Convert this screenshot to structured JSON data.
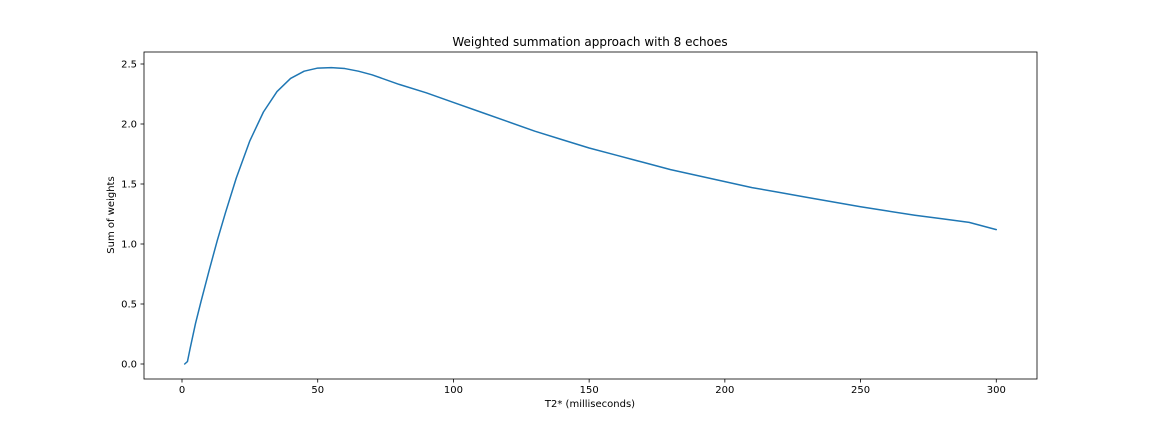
{
  "chart_data": {
    "type": "line",
    "title": "Weighted summation approach with 8 echoes",
    "xlabel": "T2* (milliseconds)",
    "ylabel": "Sum of weights",
    "xlim": [
      -14,
      315
    ],
    "ylim": [
      -0.125,
      2.6
    ],
    "xticks": [
      0,
      50,
      100,
      150,
      200,
      250,
      300
    ],
    "yticks": [
      0.0,
      0.5,
      1.0,
      1.5,
      2.0,
      2.5
    ],
    "xtick_labels": [
      "0",
      "50",
      "100",
      "150",
      "200",
      "250",
      "300"
    ],
    "ytick_labels": [
      "0.0",
      "0.5",
      "1.0",
      "1.5",
      "2.0",
      "2.5"
    ],
    "grid": false,
    "series": [
      {
        "color": "#1f77b4",
        "x": [
          1,
          2,
          3,
          5,
          7,
          10,
          13,
          16,
          20,
          25,
          30,
          35,
          40,
          45,
          50,
          55,
          60,
          65,
          70,
          80,
          90,
          100,
          110,
          120,
          130,
          140,
          150,
          160,
          170,
          180,
          190,
          200,
          210,
          220,
          230,
          240,
          250,
          260,
          270,
          280,
          290,
          300
        ],
        "y": [
          0.0,
          0.02,
          0.13,
          0.34,
          0.52,
          0.78,
          1.03,
          1.26,
          1.55,
          1.86,
          2.1,
          2.27,
          2.38,
          2.44,
          2.466,
          2.47,
          2.462,
          2.44,
          2.41,
          2.33,
          2.26,
          2.18,
          2.1,
          2.02,
          1.94,
          1.87,
          1.8,
          1.74,
          1.68,
          1.62,
          1.57,
          1.52,
          1.47,
          1.43,
          1.39,
          1.35,
          1.31,
          1.275,
          1.24,
          1.21,
          1.18,
          1.12
        ]
      }
    ]
  }
}
